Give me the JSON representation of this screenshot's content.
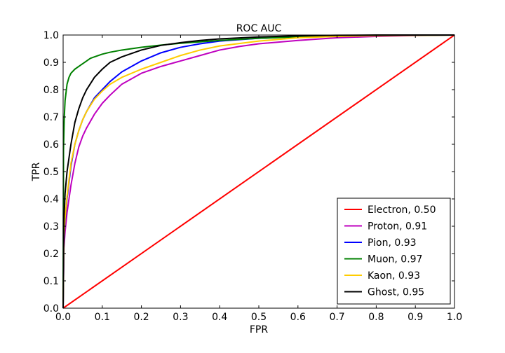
{
  "chart_data": {
    "type": "line",
    "title": "ROC AUC",
    "xlabel": "FPR",
    "ylabel": "TPR",
    "xlim": [
      0,
      1
    ],
    "ylim": [
      0,
      1
    ],
    "xticks": [
      "0.0",
      "0.1",
      "0.2",
      "0.3",
      "0.4",
      "0.5",
      "0.6",
      "0.7",
      "0.8",
      "0.9",
      "1.0"
    ],
    "yticks": [
      "0.0",
      "0.1",
      "0.2",
      "0.3",
      "0.4",
      "0.5",
      "0.6",
      "0.7",
      "0.8",
      "0.9",
      "1.0"
    ],
    "grid": false,
    "legend_position": "lower-right",
    "series": [
      {
        "name": "Electron, 0.50",
        "color": "#ff0000",
        "x": [
          0,
          1
        ],
        "y": [
          0,
          1
        ]
      },
      {
        "name": "Proton, 0.91",
        "color": "#bf00bf",
        "x": [
          0,
          0.002,
          0.005,
          0.01,
          0.02,
          0.03,
          0.04,
          0.05,
          0.06,
          0.08,
          0.1,
          0.12,
          0.15,
          0.2,
          0.25,
          0.3,
          0.35,
          0.4,
          0.45,
          0.5,
          0.6,
          0.7,
          0.8,
          0.9,
          1.0
        ],
        "y": [
          0,
          0.22,
          0.28,
          0.35,
          0.45,
          0.53,
          0.59,
          0.63,
          0.66,
          0.71,
          0.75,
          0.78,
          0.82,
          0.86,
          0.885,
          0.905,
          0.925,
          0.945,
          0.958,
          0.968,
          0.98,
          0.99,
          0.995,
          0.998,
          1.0
        ]
      },
      {
        "name": "Pion, 0.93",
        "color": "#0000ff",
        "x": [
          0,
          0.002,
          0.005,
          0.01,
          0.02,
          0.03,
          0.04,
          0.05,
          0.06,
          0.08,
          0.1,
          0.12,
          0.15,
          0.2,
          0.25,
          0.3,
          0.35,
          0.4,
          0.5,
          0.6,
          0.7,
          0.8,
          0.9,
          1.0
        ],
        "y": [
          0,
          0.25,
          0.32,
          0.4,
          0.52,
          0.6,
          0.65,
          0.69,
          0.72,
          0.77,
          0.8,
          0.83,
          0.865,
          0.905,
          0.935,
          0.955,
          0.968,
          0.978,
          0.988,
          0.994,
          0.997,
          0.999,
          1.0,
          1.0
        ]
      },
      {
        "name": "Muon, 0.97",
        "color": "#008000",
        "x": [
          0,
          0.001,
          0.003,
          0.005,
          0.01,
          0.015,
          0.02,
          0.03,
          0.04,
          0.05,
          0.06,
          0.07,
          0.08,
          0.1,
          0.12,
          0.15,
          0.2,
          0.25,
          0.3,
          0.4,
          0.5,
          0.6,
          0.7,
          0.8,
          0.9,
          1.0
        ],
        "y": [
          0,
          0.58,
          0.7,
          0.76,
          0.82,
          0.845,
          0.86,
          0.875,
          0.885,
          0.895,
          0.905,
          0.915,
          0.92,
          0.93,
          0.937,
          0.945,
          0.955,
          0.963,
          0.97,
          0.98,
          0.988,
          0.993,
          0.996,
          0.998,
          0.999,
          1.0
        ]
      },
      {
        "name": "Kaon, 0.93",
        "color": "#ffcc00",
        "x": [
          0,
          0.002,
          0.005,
          0.01,
          0.02,
          0.03,
          0.04,
          0.05,
          0.06,
          0.08,
          0.1,
          0.12,
          0.15,
          0.2,
          0.25,
          0.3,
          0.35,
          0.4,
          0.5,
          0.6,
          0.7,
          0.8,
          0.9,
          1.0
        ],
        "y": [
          0,
          0.26,
          0.33,
          0.41,
          0.53,
          0.6,
          0.65,
          0.69,
          0.72,
          0.765,
          0.795,
          0.82,
          0.845,
          0.875,
          0.9,
          0.925,
          0.945,
          0.96,
          0.978,
          0.99,
          0.995,
          0.998,
          0.999,
          1.0
        ]
      },
      {
        "name": "Ghost, 0.95",
        "color": "#000000",
        "x": [
          0,
          0.002,
          0.005,
          0.01,
          0.02,
          0.03,
          0.04,
          0.05,
          0.06,
          0.08,
          0.1,
          0.12,
          0.15,
          0.2,
          0.25,
          0.3,
          0.35,
          0.4,
          0.5,
          0.6,
          0.7,
          0.8,
          0.9,
          1.0
        ],
        "y": [
          0,
          0.32,
          0.42,
          0.5,
          0.6,
          0.68,
          0.73,
          0.77,
          0.8,
          0.845,
          0.875,
          0.9,
          0.92,
          0.945,
          0.962,
          0.972,
          0.98,
          0.986,
          0.993,
          0.997,
          0.999,
          1.0,
          1.0,
          1.0
        ]
      }
    ]
  }
}
